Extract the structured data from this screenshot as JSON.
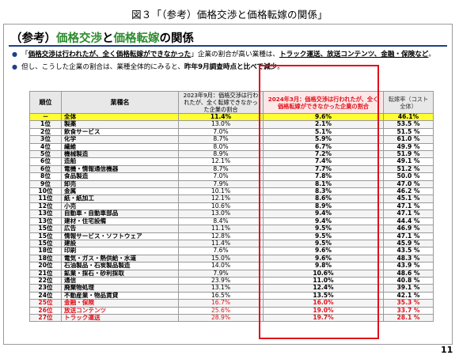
{
  "figure_caption": "図３「（参考）価格交渉と価格転嫁の関係」",
  "slide": {
    "title_prefix": "（参考）",
    "title_green_1": "価格交渉",
    "title_mid": "と",
    "title_green_2": "価格転嫁",
    "title_suffix": "の関係",
    "page_number": "11"
  },
  "bullets": [
    {
      "parts": [
        {
          "text": "「",
          "style": "plain"
        },
        {
          "text": "価格交渉は行われたが、全く価格転嫁ができなかった",
          "style": "bu"
        },
        {
          "text": "」企業の割合が高い業種は、",
          "style": "plain"
        },
        {
          "text": "トラック運送、放送コンテンツ、金融・保険など",
          "style": "bu"
        },
        {
          "text": "。",
          "style": "plain"
        }
      ]
    },
    {
      "parts": [
        {
          "text": "但し、こうした企業の割合は、業種全体的にみると、",
          "style": "plain"
        },
        {
          "text": "昨年9月調査時点と比べて減少",
          "style": "b"
        },
        {
          "text": "。",
          "style": "plain"
        }
      ]
    }
  ],
  "table": {
    "headers": {
      "rank": "順位",
      "industry": "業種名",
      "col_2023": "2023年9月：価格交渉は行われたが、全く転嫁できなかった企業の割合",
      "col_2024": "2024年3月：価格交渉は行われたが、全く価格転嫁ができなかった企業の割合",
      "col_rate": "転嫁率（コスト全体）"
    },
    "rows": [
      {
        "rank": "－",
        "industry": "全体",
        "v2023": "11.4%",
        "v2024": "9.6%",
        "rate": "46.1%",
        "kind": "total"
      },
      {
        "rank": "1位",
        "industry": "製薬",
        "v2023": "13.0%",
        "v2024": "2.1%",
        "rate": "53.5 %",
        "kind": ""
      },
      {
        "rank": "2位",
        "industry": "飲食サービス",
        "v2023": "7.0%",
        "v2024": "5.1%",
        "rate": "51.5 %",
        "kind": ""
      },
      {
        "rank": "3位",
        "industry": "化学",
        "v2023": "8.7%",
        "v2024": "5.9%",
        "rate": "61.0 %",
        "kind": ""
      },
      {
        "rank": "4位",
        "industry": "繊維",
        "v2023": "8.0%",
        "v2024": "6.7%",
        "rate": "49.9 %",
        "kind": ""
      },
      {
        "rank": "5位",
        "industry": "機械製造",
        "v2023": "8.9%",
        "v2024": "7.2%",
        "rate": "51.9 %",
        "kind": ""
      },
      {
        "rank": "6位",
        "industry": "造船",
        "v2023": "12.1%",
        "v2024": "7.4%",
        "rate": "49.1 %",
        "kind": ""
      },
      {
        "rank": "6位",
        "industry": "電機・情報通信機器",
        "v2023": "8.7%",
        "v2024": "7.7%",
        "rate": "51.2 %",
        "kind": ""
      },
      {
        "rank": "8位",
        "industry": "食品製造",
        "v2023": "7.0%",
        "v2024": "7.8%",
        "rate": "50.0 %",
        "kind": ""
      },
      {
        "rank": "9位",
        "industry": "卸売",
        "v2023": "7.9%",
        "v2024": "8.1%",
        "rate": "47.0 %",
        "kind": ""
      },
      {
        "rank": "10位",
        "industry": "金属",
        "v2023": "10.1%",
        "v2024": "8.3%",
        "rate": "46.2 %",
        "kind": ""
      },
      {
        "rank": "11位",
        "industry": "紙・紙加工",
        "v2023": "12.1%",
        "v2024": "8.6%",
        "rate": "45.1 %",
        "kind": ""
      },
      {
        "rank": "12位",
        "industry": "小売",
        "v2023": "10.6%",
        "v2024": "8.9%",
        "rate": "47.1 %",
        "kind": ""
      },
      {
        "rank": "13位",
        "industry": "自動車・自動車部品",
        "v2023": "13.0%",
        "v2024": "9.4%",
        "rate": "47.1 %",
        "kind": ""
      },
      {
        "rank": "13位",
        "industry": "建材・住宅設備",
        "v2023": "8.4%",
        "v2024": "9.4%",
        "rate": "44.4 %",
        "kind": ""
      },
      {
        "rank": "15位",
        "industry": "広告",
        "v2023": "11.1%",
        "v2024": "9.5%",
        "rate": "46.9 %",
        "kind": ""
      },
      {
        "rank": "15位",
        "industry": "情報サービス・ソフトウェア",
        "v2023": "12.8%",
        "v2024": "9.5%",
        "rate": "47.1 %",
        "kind": ""
      },
      {
        "rank": "15位",
        "industry": "建設",
        "v2023": "11.4%",
        "v2024": "9.5%",
        "rate": "45.9 %",
        "kind": ""
      },
      {
        "rank": "18位",
        "industry": "印刷",
        "v2023": "7.6%",
        "v2024": "9.6%",
        "rate": "43.5 %",
        "kind": ""
      },
      {
        "rank": "18位",
        "industry": "電気・ガス・熱供給・水道",
        "v2023": "15.0%",
        "v2024": "9.6%",
        "rate": "48.3 %",
        "kind": ""
      },
      {
        "rank": "20位",
        "industry": "石油製品・石炭製品製造",
        "v2023": "14.0%",
        "v2024": "9.8%",
        "rate": "43.9 %",
        "kind": ""
      },
      {
        "rank": "21位",
        "industry": "鉱業・採石・砂利採取",
        "v2023": "7.9%",
        "v2024": "10.6%",
        "rate": "48.6 %",
        "kind": ""
      },
      {
        "rank": "22位",
        "industry": "通信",
        "v2023": "23.9%",
        "v2024": "11.0%",
        "rate": "40.8 %",
        "kind": ""
      },
      {
        "rank": "23位",
        "industry": "廃棄物処理",
        "v2023": "13.1%",
        "v2024": "12.4%",
        "rate": "39.1 %",
        "kind": ""
      },
      {
        "rank": "24位",
        "industry": "不動産業・物品賃貸",
        "v2023": "16.5%",
        "v2024": "13.5%",
        "rate": "42.1 %",
        "kind": ""
      },
      {
        "rank": "25位",
        "industry": "金融・保険",
        "v2023": "16.7%",
        "v2024": "16.0%",
        "rate": "35.3 %",
        "kind": "red"
      },
      {
        "rank": "26位",
        "industry": "放送コンテンツ",
        "v2023": "25.6%",
        "v2024": "19.0%",
        "rate": "33.7 %",
        "kind": "red"
      },
      {
        "rank": "27位",
        "industry": "トラック運送",
        "v2023": "28.9%",
        "v2024": "19.7%",
        "rate": "28.1 %",
        "kind": "red"
      }
    ]
  }
}
